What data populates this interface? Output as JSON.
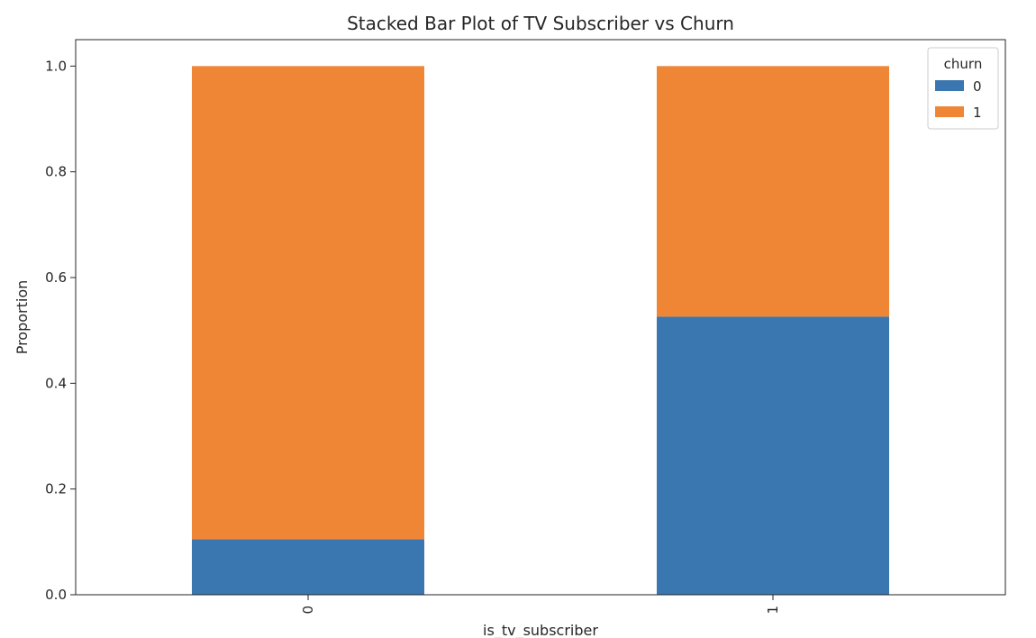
{
  "chart_data": {
    "type": "bar",
    "stacked": true,
    "title": "Stacked Bar Plot of TV Subscriber vs Churn",
    "xlabel": "is_tv_subscriber",
    "ylabel": "Proportion",
    "categories": [
      "0",
      "1"
    ],
    "series": [
      {
        "name": "0",
        "values": [
          0.105,
          0.526
        ],
        "color": "#3a76af"
      },
      {
        "name": "1",
        "values": [
          0.895,
          0.474
        ],
        "color": "#ef8636"
      }
    ],
    "ylim": [
      0,
      1.05
    ],
    "yticks": [
      "0.0",
      "0.2",
      "0.4",
      "0.6",
      "0.8",
      "1.0"
    ],
    "grid": false,
    "legend": {
      "title": "churn",
      "placement": "top-right"
    },
    "xtick_rotation": "vertical"
  }
}
